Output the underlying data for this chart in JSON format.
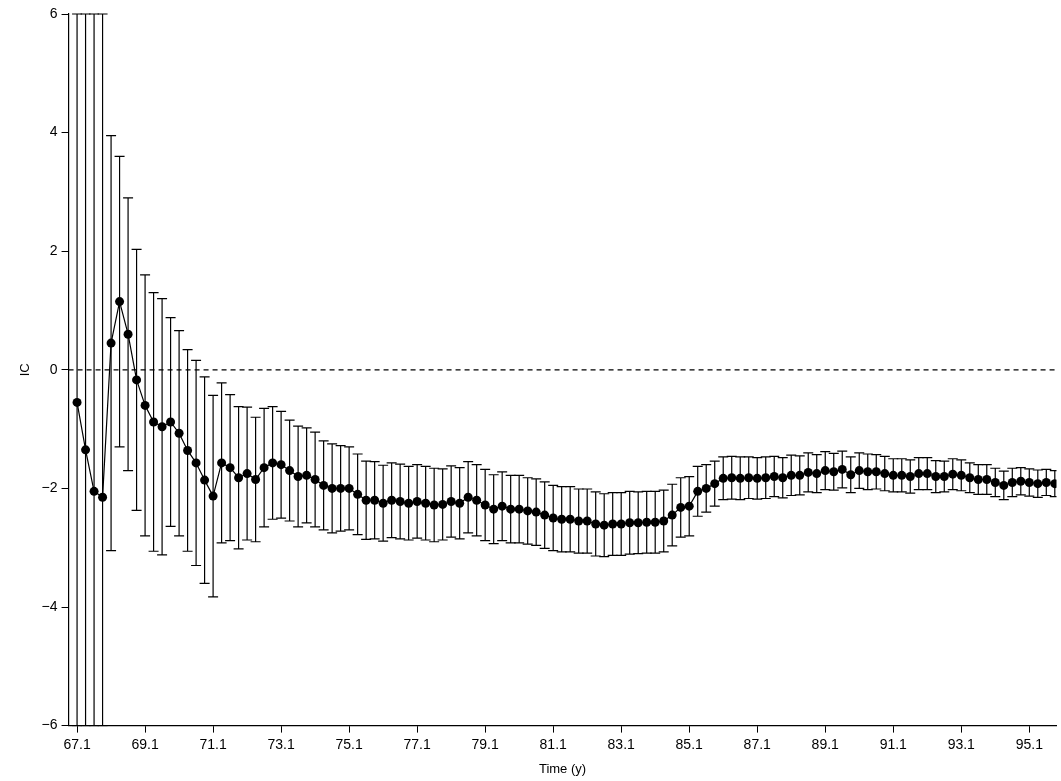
{
  "chart_data": {
    "type": "line",
    "xlabel": "Time (y)",
    "ylabel": "IC",
    "marker": "circle",
    "line_style": "solid",
    "grid": false,
    "legend": false,
    "xlim": [
      66.85,
      95.9
    ],
    "xticks": [
      67.1,
      69.1,
      71.1,
      73.1,
      75.1,
      77.1,
      79.1,
      81.1,
      83.1,
      85.1,
      87.1,
      89.1,
      91.1,
      93.1,
      95.1
    ],
    "ylim": [
      -6,
      6
    ],
    "yticks": [
      {
        "value": -6,
        "label": "−6"
      },
      {
        "value": -4,
        "label": "−4"
      },
      {
        "value": -2,
        "label": "−2"
      },
      0,
      2,
      4,
      6
    ],
    "ref_lines": [
      {
        "axis": "y",
        "value": 0,
        "line_style": "dashed",
        "color": "#000000"
      }
    ],
    "series": [
      {
        "color": "#000000",
        "x": [
          67.1,
          67.35,
          67.6,
          67.85,
          68.1,
          68.35,
          68.6,
          68.85,
          69.1,
          69.35,
          69.6,
          69.85,
          70.1,
          70.35,
          70.6,
          70.85,
          71.1,
          71.35,
          71.6,
          71.85,
          72.1,
          72.35,
          72.6,
          72.85,
          73.1,
          73.35,
          73.6,
          73.85,
          74.1,
          74.35,
          74.6,
          74.85,
          75.1,
          75.35,
          75.6,
          75.85,
          76.1,
          76.35,
          76.6,
          76.85,
          77.1,
          77.35,
          77.6,
          77.85,
          78.1,
          78.35,
          78.6,
          78.85,
          79.1,
          79.35,
          79.6,
          79.85,
          80.1,
          80.35,
          80.6,
          80.85,
          81.1,
          81.35,
          81.6,
          81.85,
          82.1,
          82.35,
          82.6,
          82.85,
          83.1,
          83.35,
          83.6,
          83.85,
          84.1,
          84.35,
          84.6,
          84.85,
          85.1,
          85.35,
          85.6,
          85.85,
          86.1,
          86.35,
          86.6,
          86.85,
          87.1,
          87.35,
          87.6,
          87.85,
          88.1,
          88.35,
          88.6,
          88.85,
          89.1,
          89.35,
          89.6,
          89.85,
          90.1,
          90.35,
          90.6,
          90.85,
          91.1,
          91.35,
          91.6,
          91.85,
          92.1,
          92.35,
          92.6,
          92.85,
          93.1,
          93.35,
          93.6,
          93.85,
          94.1,
          94.35,
          94.6,
          94.85,
          95.1,
          95.35,
          95.6,
          95.85
        ],
        "values": [
          -0.55,
          -1.35,
          -2.05,
          -2.15,
          0.45,
          1.15,
          0.6,
          -0.17,
          -0.6,
          -0.88,
          -0.96,
          -0.88,
          -1.07,
          -1.36,
          -1.57,
          -1.86,
          -2.13,
          -1.57,
          -1.65,
          -1.82,
          -1.75,
          -1.85,
          -1.65,
          -1.57,
          -1.6,
          -1.7,
          -1.8,
          -1.78,
          -1.85,
          -1.95,
          -2.0,
          -2.0,
          -2.0,
          -2.1,
          -2.2,
          -2.2,
          -2.25,
          -2.2,
          -2.22,
          -2.25,
          -2.22,
          -2.25,
          -2.28,
          -2.27,
          -2.22,
          -2.25,
          -2.15,
          -2.2,
          -2.28,
          -2.35,
          -2.3,
          -2.35,
          -2.35,
          -2.38,
          -2.4,
          -2.45,
          -2.5,
          -2.52,
          -2.52,
          -2.55,
          -2.55,
          -2.6,
          -2.62,
          -2.6,
          -2.6,
          -2.58,
          -2.58,
          -2.57,
          -2.57,
          -2.55,
          -2.45,
          -2.32,
          -2.3,
          -2.05,
          -2.0,
          -1.92,
          -1.83,
          -1.82,
          -1.83,
          -1.82,
          -1.83,
          -1.82,
          -1.8,
          -1.82,
          -1.78,
          -1.78,
          -1.73,
          -1.75,
          -1.7,
          -1.72,
          -1.68,
          -1.77,
          -1.7,
          -1.72,
          -1.72,
          -1.75,
          -1.78,
          -1.78,
          -1.8,
          -1.75,
          -1.75,
          -1.8,
          -1.8,
          -1.76,
          -1.78,
          -1.82,
          -1.85,
          -1.85,
          -1.9,
          -1.95,
          -1.9,
          -1.88,
          -1.9,
          -1.92,
          -1.9,
          -1.92
        ],
        "errors": [
          [
            -6,
            6
          ],
          [
            -6,
            6
          ],
          [
            -6,
            6
          ],
          [
            -6,
            6
          ],
          3.5,
          2.45,
          2.3,
          2.2,
          2.2,
          2.18,
          2.16,
          1.76,
          1.73,
          1.7,
          1.73,
          1.74,
          1.7,
          1.35,
          1.23,
          1.2,
          1.12,
          1.05,
          1.0,
          0.95,
          0.9,
          0.85,
          0.85,
          0.8,
          0.8,
          0.75,
          0.75,
          0.72,
          0.7,
          0.68,
          0.66,
          0.65,
          0.64,
          0.63,
          0.63,
          0.62,
          0.62,
          0.62,
          0.62,
          0.6,
          0.6,
          0.6,
          0.6,
          0.6,
          0.6,
          0.58,
          0.58,
          0.57,
          0.57,
          0.56,
          0.56,
          0.56,
          0.55,
          0.55,
          0.55,
          0.54,
          0.54,
          0.54,
          0.53,
          0.53,
          0.53,
          0.53,
          0.52,
          0.52,
          0.52,
          0.52,
          0.52,
          0.5,
          0.5,
          0.42,
          0.4,
          0.38,
          0.36,
          0.36,
          0.36,
          0.35,
          0.35,
          0.35,
          0.34,
          0.34,
          0.34,
          0.33,
          0.33,
          0.32,
          0.32,
          0.31,
          0.31,
          0.3,
          0.3,
          0.3,
          0.29,
          0.29,
          0.28,
          0.28,
          0.28,
          0.27,
          0.27,
          0.27,
          0.26,
          0.26,
          0.26,
          0.25,
          0.25,
          0.25,
          0.24,
          0.24,
          0.24,
          0.23,
          0.23,
          0.23,
          0.22,
          0.22
        ]
      }
    ]
  }
}
